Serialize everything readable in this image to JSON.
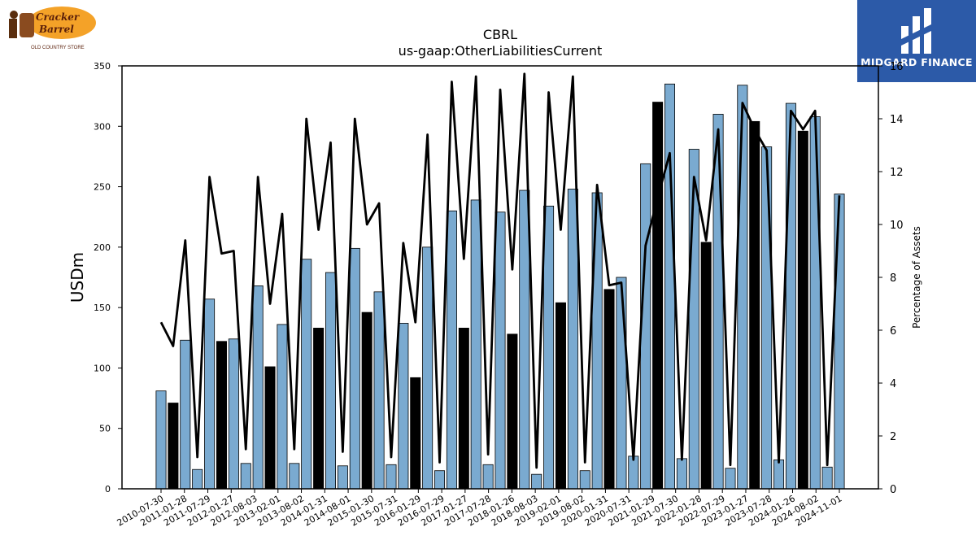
{
  "logos": {
    "left_brand": "Cracker Barrel",
    "left_tagline": "OLD COUNTRY STORE",
    "right_brand": "MIDGARD FINANCE"
  },
  "chart_data": {
    "type": "bar",
    "title": "CBRL",
    "subtitle": "us-gaap:OtherLiabilitiesCurrent",
    "ylabel": "USDm",
    "y2label": "Percentage of Assets",
    "ylim": [
      0,
      350
    ],
    "y2lim": [
      0,
      16
    ],
    "yticks": [
      0,
      50,
      100,
      150,
      200,
      250,
      300,
      350
    ],
    "y2ticks": [
      0,
      2,
      4,
      6,
      8,
      10,
      12,
      14,
      16
    ],
    "colors": {
      "bar_light": "#7aaad0",
      "bar_dark": "#000000",
      "line": "#000000"
    },
    "categories": [
      "2010-07-30",
      "2011-01-28",
      "2011-07-29",
      "2012-01-27",
      "2012-08-03",
      "2013-02-01",
      "2013-08-02",
      "2014-01-31",
      "2014-08-01",
      "2015-01-30",
      "2015-07-31",
      "2016-01-29",
      "2016-07-29",
      "2017-01-27",
      "2017-07-28",
      "2018-01-26",
      "2018-08-03",
      "2019-02-01",
      "2019-08-02",
      "2020-01-31",
      "2020-07-31",
      "2021-01-29",
      "2021-07-30",
      "2022-01-28",
      "2022-07-29",
      "2023-01-27",
      "2023-07-28",
      "2024-01-26",
      "2024-08-02",
      "2024-11-01"
    ],
    "bars": [
      {
        "value": 81,
        "dark": false
      },
      {
        "value": 71,
        "dark": true
      },
      {
        "value": 123,
        "dark": false
      },
      {
        "value": 16,
        "dark": false
      },
      {
        "value": 157,
        "dark": false
      },
      {
        "value": 122,
        "dark": true
      },
      {
        "value": 124,
        "dark": false
      },
      {
        "value": 21,
        "dark": false
      },
      {
        "value": 168,
        "dark": false
      },
      {
        "value": 101,
        "dark": true
      },
      {
        "value": 136,
        "dark": false
      },
      {
        "value": 21,
        "dark": false
      },
      {
        "value": 190,
        "dark": false
      },
      {
        "value": 133,
        "dark": true
      },
      {
        "value": 179,
        "dark": false
      },
      {
        "value": 19,
        "dark": false
      },
      {
        "value": 199,
        "dark": false
      },
      {
        "value": 146,
        "dark": true
      },
      {
        "value": 163,
        "dark": false
      },
      {
        "value": 20,
        "dark": false
      },
      {
        "value": 137,
        "dark": false
      },
      {
        "value": 92,
        "dark": true
      },
      {
        "value": 200,
        "dark": false
      },
      {
        "value": 15,
        "dark": false
      },
      {
        "value": 230,
        "dark": false
      },
      {
        "value": 133,
        "dark": true
      },
      {
        "value": 239,
        "dark": false
      },
      {
        "value": 20,
        "dark": false
      },
      {
        "value": 229,
        "dark": false
      },
      {
        "value": 128,
        "dark": true
      },
      {
        "value": 247,
        "dark": false
      },
      {
        "value": 12,
        "dark": false
      },
      {
        "value": 234,
        "dark": false
      },
      {
        "value": 154,
        "dark": true
      },
      {
        "value": 248,
        "dark": false
      },
      {
        "value": 15,
        "dark": false
      },
      {
        "value": 245,
        "dark": false
      },
      {
        "value": 165,
        "dark": true
      },
      {
        "value": 175,
        "dark": false
      },
      {
        "value": 27,
        "dark": false
      },
      {
        "value": 269,
        "dark": false
      },
      {
        "value": 320,
        "dark": true
      },
      {
        "value": 335,
        "dark": false
      },
      {
        "value": 25,
        "dark": false
      },
      {
        "value": 281,
        "dark": false
      },
      {
        "value": 204,
        "dark": true
      },
      {
        "value": 310,
        "dark": false
      },
      {
        "value": 17,
        "dark": false
      },
      {
        "value": 334,
        "dark": false
      },
      {
        "value": 304,
        "dark": true
      },
      {
        "value": 283,
        "dark": false
      },
      {
        "value": 24,
        "dark": false
      },
      {
        "value": 319,
        "dark": false
      },
      {
        "value": 296,
        "dark": true
      },
      {
        "value": 308,
        "dark": false
      },
      {
        "value": 18,
        "dark": false
      },
      {
        "value": 244,
        "dark": false
      }
    ],
    "line_pct": [
      6.3,
      5.4,
      9.4,
      1.2,
      11.8,
      8.9,
      9.0,
      1.5,
      11.8,
      7.0,
      10.4,
      1.5,
      14.0,
      9.8,
      13.1,
      1.4,
      14.0,
      10.0,
      10.8,
      1.2,
      9.3,
      6.3,
      13.4,
      1.0,
      15.4,
      8.7,
      15.6,
      1.3,
      15.1,
      8.3,
      15.7,
      0.8,
      15.0,
      9.8,
      15.6,
      1.0,
      11.5,
      7.7,
      7.8,
      1.1,
      9.2,
      11.0,
      12.7,
      1.1,
      11.8,
      9.4,
      13.6,
      0.9,
      14.6,
      13.6,
      12.8,
      1.0,
      14.3,
      13.6,
      14.3,
      0.9,
      11.1
    ]
  }
}
